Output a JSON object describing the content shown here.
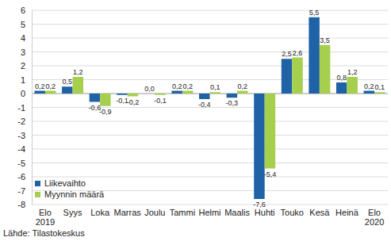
{
  "chart_data": {
    "type": "bar",
    "categories": [
      "Elo\n2019",
      "Syys",
      "Loka",
      "Marras",
      "Joulu",
      "Tammi",
      "Helmi",
      "Maalis",
      "Huhti",
      "Touko",
      "Kesä",
      "Heinä",
      "Elo\n2020"
    ],
    "series": [
      {
        "name": "Liikevaihto",
        "color": "#1f62a5",
        "values": [
          0.2,
          0.5,
          -0.6,
          -0.1,
          0.0,
          0.2,
          -0.4,
          -0.3,
          -7.6,
          2.5,
          5.5,
          0.8,
          0.2
        ],
        "value_labels": [
          "0,2",
          "0,5",
          "-0,6",
          "-0,1",
          "0,0",
          "0,2",
          "-0,4",
          "-0,3",
          "-7,6",
          "2,5",
          "5,5",
          "0,8",
          "0,2"
        ]
      },
      {
        "name": "Myynnin määrä",
        "color": "#a5cf4c",
        "values": [
          0.2,
          1.2,
          -0.9,
          -0.2,
          -0.1,
          0.2,
          0.1,
          0.2,
          -5.4,
          2.6,
          3.5,
          1.2,
          0.1
        ],
        "value_labels": [
          "0,2",
          "1,2",
          "-0,9",
          "-0,2",
          "-0,1",
          "0,2",
          "0,1",
          "0,2",
          "-5,4",
          "2,6",
          "3,5",
          "1,2",
          "0,1"
        ]
      }
    ],
    "ylim": [
      -8,
      6
    ],
    "yticks": [
      -8,
      -7,
      -6,
      -5,
      -4,
      -3,
      -2,
      -1,
      0,
      1,
      2,
      3,
      4,
      5,
      6
    ],
    "grid": true,
    "data_labels": true,
    "legend": "lower left",
    "annotations": [
      "Lähde: Tilastokeskus"
    ]
  }
}
